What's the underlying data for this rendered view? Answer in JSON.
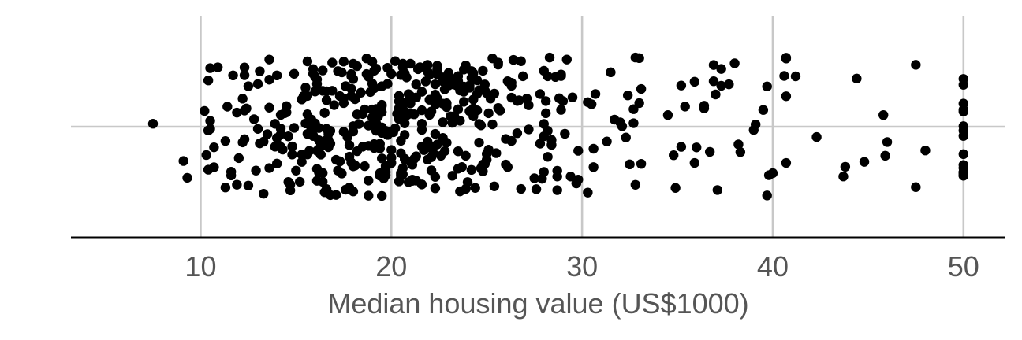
{
  "chart_data": {
    "type": "scatter",
    "jitter": true,
    "title": "",
    "xlabel": "Median housing value (US$1000)",
    "ylabel": "",
    "xlim": [
      3.2,
      52.2
    ],
    "xticks": [
      10,
      20,
      30,
      40,
      50
    ],
    "xtick_labels": [
      "10",
      "20",
      "30",
      "40",
      "50"
    ],
    "grid": true,
    "legend": "none",
    "point_color": "#000000",
    "grid_color": "#c8c8c8",
    "n_points": 506,
    "seed": 7
  }
}
